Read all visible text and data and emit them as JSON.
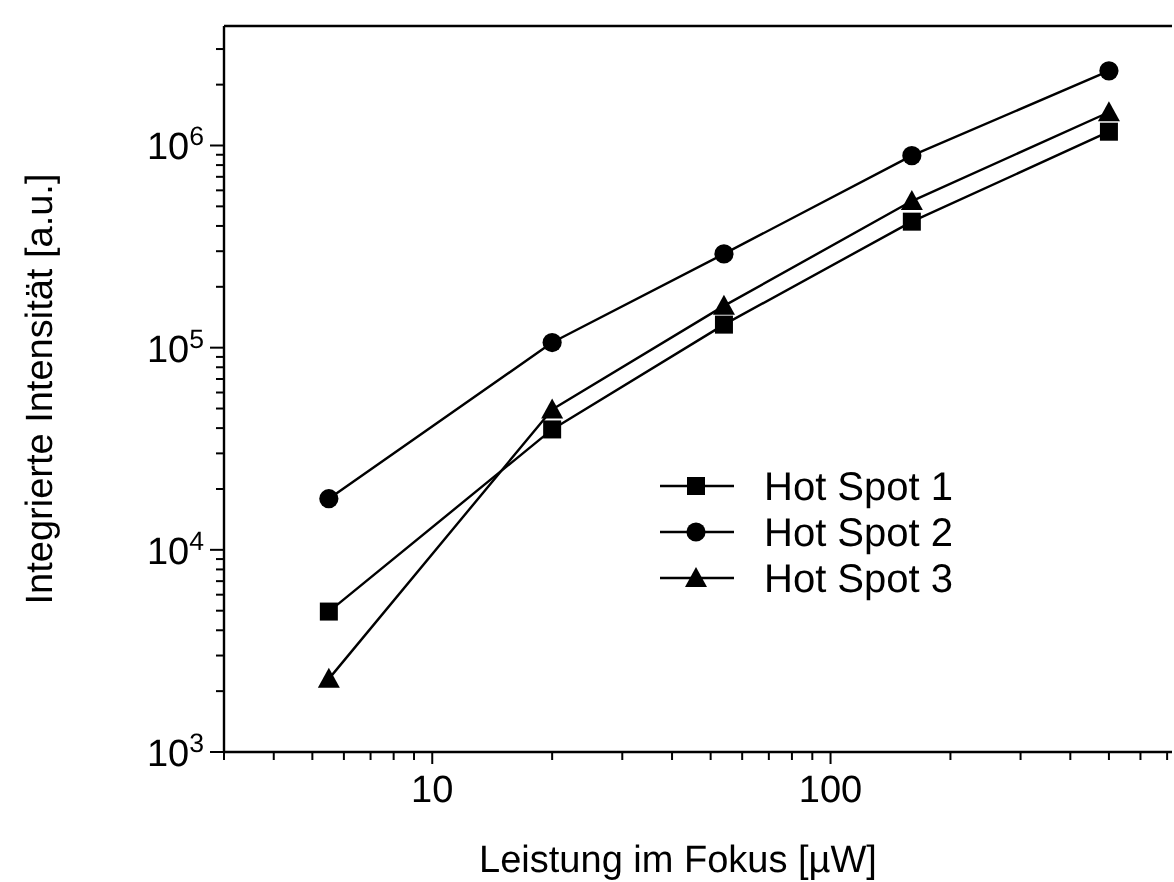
{
  "chart_data": {
    "type": "line",
    "xlabel": "Leistung im Fokus [µW]",
    "ylabel": "Integrierte Intensität [a.u.]",
    "log": "xy",
    "legend": "right",
    "grid": false,
    "x": [
      5.5,
      20,
      54,
      160,
      500
    ],
    "xlim": [
      3,
      720
    ],
    "xticks": [
      {
        "value": 3,
        "label": null
      },
      {
        "value": 4,
        "label": null
      },
      {
        "value": 5,
        "label": null
      },
      {
        "value": 6,
        "label": null
      },
      {
        "value": 7,
        "label": null
      },
      {
        "value": 8,
        "label": null
      },
      {
        "value": 9,
        "label": null
      },
      10,
      {
        "value": 20,
        "label": null
      },
      {
        "value": 30,
        "label": null
      },
      {
        "value": 40,
        "label": null
      },
      {
        "value": 50,
        "label": null
      },
      {
        "value": 60,
        "label": null
      },
      {
        "value": 70,
        "label": null
      },
      {
        "value": 80,
        "label": null
      },
      {
        "value": 90,
        "label": null
      },
      100,
      {
        "value": 200,
        "label": null
      },
      {
        "value": 300,
        "label": null
      },
      {
        "value": 400,
        "label": null
      },
      {
        "value": 500,
        "label": null
      },
      {
        "value": 600,
        "label": null
      },
      {
        "value": 700,
        "label": null
      }
    ],
    "ylim": [
      1000,
      3900000
    ],
    "yticks": [
      {
        "value": 1000,
        "label": "10$^{3}$"
      },
      {
        "value": 10000,
        "label": "10$^{4}$"
      },
      {
        "value": 100000,
        "label": "10$^{5}$"
      },
      {
        "value": 1000000,
        "label": "10$^{6}$"
      }
    ],
    "series": [
      {
        "name": "Hot Spot 1",
        "color": "#000000",
        "marker": "square",
        "values": [
          4950,
          39400,
          130000,
          420000,
          1170000
        ]
      },
      {
        "name": "Hot Spot 2",
        "color": "#000000",
        "marker": "circle",
        "values": [
          17900,
          106000,
          291000,
          891000,
          2340000
        ]
      },
      {
        "name": "Hot Spot 3",
        "color": "#000000",
        "marker": "triangle",
        "values": [
          2300,
          49500,
          161000,
          531000,
          1460000
        ]
      }
    ]
  }
}
